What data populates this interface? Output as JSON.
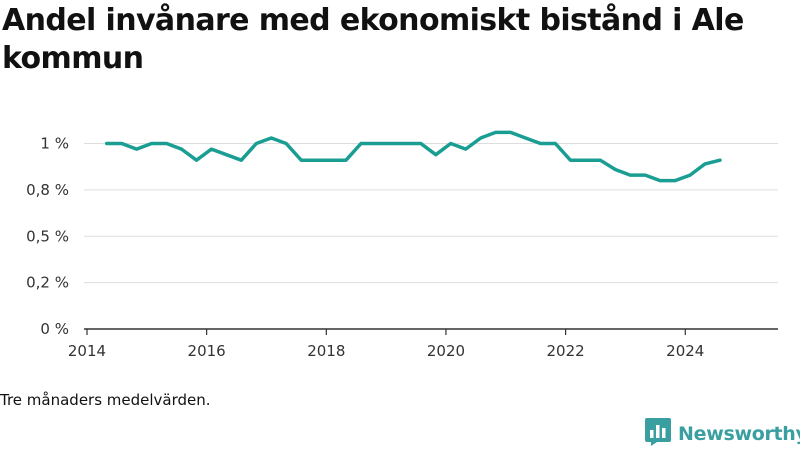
{
  "title": "Andel invånare med ekonomiskt bistånd i Ale kommun",
  "caption": "Tre månaders medelvärden.",
  "brand": {
    "name": "Newsworthy",
    "icon": "bar-chart-logo-icon",
    "color": "#3a9fa1"
  },
  "colors": {
    "line": "#1a9e93",
    "grid": "#dddddd",
    "axis": "#333333",
    "text": "#333333"
  },
  "chart_data": {
    "type": "line",
    "title": "Andel invånare med ekonomiskt bistånd i Ale kommun",
    "xlabel": "",
    "ylabel": "",
    "xlim": [
      2013.95,
      2025.55
    ],
    "ylim": [
      0,
      1.1
    ],
    "grid": true,
    "legend": "none",
    "xticks": [
      2014,
      2016,
      2018,
      2020,
      2022,
      2024
    ],
    "xtick_labels": [
      "2014",
      "2016",
      "2018",
      "2020",
      "2022",
      "2024"
    ],
    "yticks": [
      0,
      0.25,
      0.5,
      0.75,
      1.0
    ],
    "ytick_labels": [
      "0 %",
      "0,2 %",
      "0,5 %",
      "0,8 %",
      "1 %"
    ],
    "series": [
      {
        "name": "",
        "x": [
          2014.33,
          2014.58,
          2014.83,
          2015.08,
          2015.33,
          2015.58,
          2015.83,
          2016.08,
          2016.33,
          2016.58,
          2016.83,
          2017.08,
          2017.33,
          2017.58,
          2017.83,
          2018.08,
          2018.33,
          2018.58,
          2018.83,
          2019.08,
          2019.33,
          2019.58,
          2019.83,
          2020.08,
          2020.33,
          2020.58,
          2020.83,
          2021.08,
          2021.33,
          2021.58,
          2021.83,
          2022.08,
          2022.33,
          2022.58,
          2022.83,
          2023.08,
          2023.33,
          2023.58,
          2023.83,
          2024.08,
          2024.33,
          2024.58
        ],
        "y": [
          1.0,
          1.0,
          0.97,
          1.0,
          1.0,
          0.97,
          0.91,
          0.97,
          0.94,
          0.91,
          1.0,
          1.03,
          1.0,
          0.91,
          0.91,
          0.91,
          0.91,
          1.0,
          1.0,
          1.0,
          1.0,
          1.0,
          0.94,
          1.0,
          0.97,
          1.03,
          1.06,
          1.06,
          1.03,
          1.0,
          1.0,
          0.91,
          0.91,
          0.91,
          0.86,
          0.83,
          0.83,
          0.8,
          0.8,
          0.83,
          0.89,
          0.91
        ]
      }
    ]
  }
}
